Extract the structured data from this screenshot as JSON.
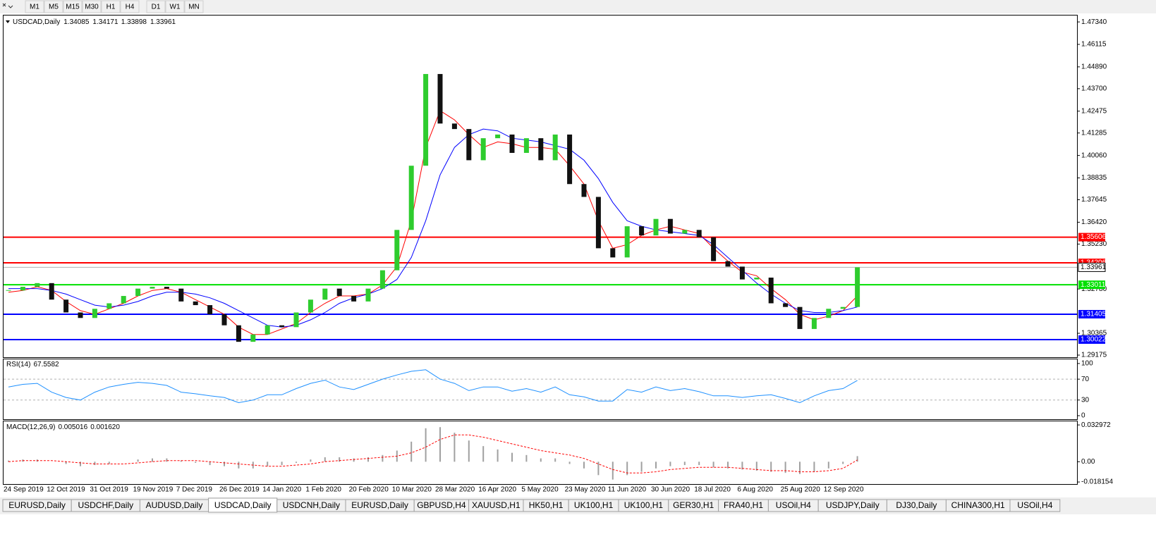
{
  "toolbar": [
    "M1",
    "M5",
    "M15",
    "M30",
    "H1",
    "H4",
    "D1",
    "W1",
    "MN"
  ],
  "tabs": [
    "EURUSD,Daily",
    "USDCHF,Daily",
    "AUDUSD,Daily",
    "USDCAD,Daily",
    "USDCNH,Daily",
    "EURUSD,Daily",
    "GBPUSD,H4",
    "XAUUSD,H1",
    "HK50,H1",
    "UK100,H1",
    "UK100,H1",
    "GER30,H1",
    "FRA40,H1",
    "USOil,H4",
    "USDJPY,Daily",
    "DJ30,Daily",
    "CHINA300,H1",
    "USOil,H4"
  ],
  "chart_data": [
    {
      "type": "candlestick",
      "title": "USDCAD,Daily",
      "header_values": [
        1.34085,
        1.34171,
        1.33898,
        1.33961
      ],
      "up_color": "#2ecc2e",
      "down_color": "#111111",
      "categories": [
        "24 Sep 2019",
        null,
        null,
        "12 Oct 2019",
        null,
        null,
        "31 Oct 2019",
        null,
        null,
        "19 Nov 2019",
        null,
        null,
        "7 Dec 2019",
        null,
        null,
        "26 Dec 2019",
        null,
        null,
        "14 Jan 2020",
        null,
        null,
        "1 Feb 2020",
        null,
        null,
        "20 Feb 2020",
        null,
        null,
        "10 Mar 2020",
        null,
        null,
        "28 Mar 2020",
        null,
        null,
        "16 Apr 2020",
        null,
        null,
        "5 May 2020",
        null,
        null,
        "23 May 2020",
        null,
        null,
        "11 Jun 2020",
        null,
        null,
        "30 Jun 2020",
        null,
        null,
        "18 Jul 2020",
        null,
        null,
        "6 Aug 2020",
        null,
        null,
        "25 Aug 2020",
        null,
        null,
        "12 Sep 2020",
        null,
        null
      ],
      "values": [
        1.327,
        1.329,
        1.331,
        1.322,
        1.315,
        1.312,
        1.317,
        1.32,
        1.324,
        1.328,
        1.329,
        1.328,
        1.321,
        1.319,
        1.314,
        1.308,
        1.299,
        1.303,
        1.308,
        1.307,
        1.315,
        1.322,
        1.328,
        1.324,
        1.321,
        1.328,
        1.338,
        1.36,
        1.395,
        1.445,
        1.418,
        1.415,
        1.398,
        1.41,
        1.412,
        1.402,
        1.41,
        1.398,
        1.412,
        1.385,
        1.378,
        1.35,
        1.345,
        1.362,
        1.357,
        1.366,
        1.358,
        1.36,
        1.356,
        1.343,
        1.34,
        1.333,
        1.334,
        1.32,
        1.318,
        1.306,
        1.312,
        1.317,
        1.318,
        1.33961
      ],
      "series": [
        {
          "color": "#ff0000",
          "values": [
            1.326,
            1.327,
            1.329,
            1.327,
            1.321,
            1.316,
            1.314,
            1.317,
            1.32,
            1.324,
            1.327,
            1.328,
            1.326,
            1.322,
            1.318,
            1.314,
            1.307,
            1.303,
            1.303,
            1.306,
            1.309,
            1.315,
            1.32,
            1.324,
            1.324,
            1.325,
            1.33,
            1.34,
            1.365,
            1.405,
            1.425,
            1.42,
            1.412,
            1.405,
            1.408,
            1.407,
            1.405,
            1.405,
            1.404,
            1.395,
            1.385,
            1.365,
            1.35,
            1.352,
            1.357,
            1.36,
            1.362,
            1.36,
            1.358,
            1.35,
            1.343,
            1.337,
            1.335,
            1.328,
            1.322,
            1.314,
            1.311,
            1.313,
            1.316,
            1.324
          ]
        },
        {
          "color": "#0000ff",
          "values": [
            1.328,
            1.328,
            1.328,
            1.327,
            1.325,
            1.322,
            1.319,
            1.318,
            1.319,
            1.321,
            1.324,
            1.326,
            1.326,
            1.325,
            1.323,
            1.32,
            1.316,
            1.312,
            1.308,
            1.307,
            1.308,
            1.311,
            1.315,
            1.32,
            1.323,
            1.325,
            1.328,
            1.333,
            1.345,
            1.365,
            1.39,
            1.405,
            1.412,
            1.415,
            1.414,
            1.41,
            1.409,
            1.408,
            1.406,
            1.404,
            1.398,
            1.388,
            1.375,
            1.365,
            1.362,
            1.36,
            1.359,
            1.358,
            1.357,
            1.352,
            1.345,
            1.338,
            1.331,
            1.325,
            1.32,
            1.316,
            1.315,
            1.315,
            1.316,
            1.318
          ]
        }
      ],
      "levels": [
        {
          "value": 1.35606,
          "color": "#ff0000"
        },
        {
          "value": 1.34206,
          "color": "#ff0000"
        },
        {
          "value": 1.33011,
          "color": "#00e000"
        },
        {
          "value": 1.31405,
          "color": "#0000ff"
        },
        {
          "value": 1.30022,
          "color": "#0000ff"
        }
      ],
      "ylim": [
        1.2906,
        1.4769
      ],
      "yticks": [
        {
          "value": 1.4734,
          "label": "1.47340"
        },
        {
          "value": 1.46115,
          "label": "1.46115"
        },
        {
          "value": 1.4489,
          "label": "1.44890"
        },
        {
          "value": 1.437,
          "label": "1.43700"
        },
        {
          "value": 1.42475,
          "label": "1.42475"
        },
        {
          "value": 1.41285,
          "label": "1.41285"
        },
        {
          "value": 1.4006,
          "label": "1.40060"
        },
        {
          "value": 1.38835,
          "label": "1.38835"
        },
        {
          "value": 1.37645,
          "label": "1.37645"
        },
        {
          "value": 1.3642,
          "label": "1.36420"
        },
        {
          "value": 1.3523,
          "label": "1.35230"
        },
        {
          "value": 1.3278,
          "label": "1.32780"
        },
        {
          "value": 1.30365,
          "label": "1.30365"
        },
        {
          "value": 1.29175,
          "label": "1.29175"
        }
      ]
    },
    {
      "type": "line",
      "title": "RSI(14)",
      "color": "#1e90ff",
      "values": [
        55,
        60,
        62,
        45,
        35,
        30,
        45,
        55,
        60,
        64,
        62,
        58,
        45,
        42,
        38,
        35,
        25,
        30,
        40,
        40,
        52,
        62,
        68,
        55,
        50,
        60,
        70,
        78,
        85,
        88,
        70,
        62,
        48,
        55,
        55,
        47,
        52,
        45,
        55,
        40,
        36,
        28,
        28,
        50,
        45,
        55,
        48,
        52,
        46,
        38,
        38,
        35,
        38,
        40,
        33,
        25,
        38,
        48,
        52,
        67.5582
      ],
      "levels": [
        70,
        30
      ],
      "ylim": [
        -6.8,
        108
      ],
      "yticks": [
        100,
        70,
        30,
        0
      ]
    },
    {
      "type": "macd",
      "title": "MACD(12,26,9)",
      "bar_color": "#a0a0a0",
      "signal_color": "#ff0000",
      "header_values": [
        {
          "value": 0.005016,
          "label": "0.005016"
        },
        {
          "value": 0.00162,
          "label": "0.001620"
        }
      ],
      "values": [
        0.001,
        0.002,
        0.002,
        0.0,
        -0.002,
        -0.004,
        -0.003,
        -0.002,
        0.0,
        0.002,
        0.003,
        0.003,
        0.001,
        -0.001,
        -0.003,
        -0.004,
        -0.006,
        -0.006,
        -0.004,
        -0.003,
        -0.001,
        0.002,
        0.004,
        0.004,
        0.003,
        0.004,
        0.006,
        0.01,
        0.018,
        0.03,
        0.031,
        0.026,
        0.019,
        0.014,
        0.011,
        0.008,
        0.006,
        0.003,
        0.003,
        -0.002,
        -0.006,
        -0.012,
        -0.016,
        -0.012,
        -0.009,
        -0.006,
        -0.004,
        -0.003,
        -0.003,
        -0.005,
        -0.006,
        -0.007,
        -0.008,
        -0.009,
        -0.01,
        -0.011,
        -0.009,
        -0.006,
        -0.002,
        0.005016
      ],
      "signal": [
        0.0,
        0.001,
        0.001,
        0.001,
        0.0,
        -0.001,
        -0.002,
        -0.002,
        -0.002,
        -0.001,
        0.0,
        0.001,
        0.001,
        0.001,
        0.0,
        -0.001,
        -0.002,
        -0.003,
        -0.004,
        -0.004,
        -0.003,
        -0.002,
        0.0,
        0.001,
        0.002,
        0.003,
        0.004,
        0.005,
        0.008,
        0.013,
        0.02,
        0.024,
        0.024,
        0.022,
        0.019,
        0.016,
        0.013,
        0.01,
        0.008,
        0.006,
        0.003,
        -0.002,
        -0.007,
        -0.01,
        -0.01,
        -0.009,
        -0.007,
        -0.006,
        -0.005,
        -0.005,
        -0.005,
        -0.006,
        -0.007,
        -0.008,
        -0.008,
        -0.009,
        -0.009,
        -0.008,
        -0.006,
        0.00162
      ],
      "ylim": [
        -0.02,
        0.0362
      ],
      "yticks": [
        {
          "value": 0.032972,
          "label": "0.032972"
        },
        {
          "value": 0,
          "label": "0.00"
        },
        {
          "value": -0.018154,
          "label": "-0.018154"
        }
      ]
    }
  ]
}
